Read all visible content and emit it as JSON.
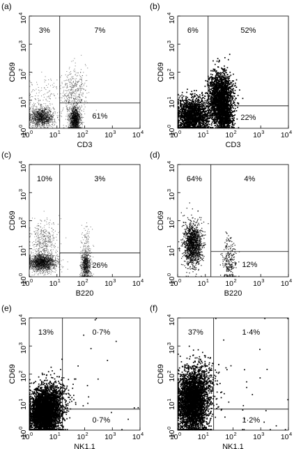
{
  "chart_data": [
    {
      "type": "scatter",
      "panel_label": "(a)",
      "xlabel": "CD3",
      "ylabel": "CD69",
      "x_log_range": [
        0,
        4
      ],
      "y_log_range": [
        0,
        4
      ],
      "tick_labels": [
        "10",
        "10",
        "10",
        "10",
        "10"
      ],
      "tick_exponents": [
        "0",
        "1",
        "2",
        "3",
        "4"
      ],
      "x_gate_log": 1.1,
      "y_gate_log": 0.9,
      "quadrant_percentages": {
        "upper_left": "3%",
        "upper_right": "7%",
        "lower_right": "61%"
      },
      "density": "sparse",
      "clusters": [
        {
          "x": 0.45,
          "y": 0.4,
          "sx": 0.22,
          "sy": 0.17,
          "count": 1300
        },
        {
          "x": 1.65,
          "y": 0.3,
          "sx": 0.1,
          "sy": 0.22,
          "count": 1400
        },
        {
          "x": 1.6,
          "y": 1.25,
          "sx": 0.22,
          "sy": 0.45,
          "count": 450
        },
        {
          "x": 0.5,
          "y": 1.2,
          "sx": 0.3,
          "sy": 0.35,
          "count": 120
        }
      ]
    },
    {
      "type": "scatter",
      "panel_label": "(b)",
      "xlabel": "CD3",
      "ylabel": "CD69",
      "x_log_range": [
        0,
        4
      ],
      "y_log_range": [
        0,
        4
      ],
      "tick_labels": [
        "10",
        "10",
        "10",
        "10",
        "10"
      ],
      "tick_exponents": [
        "0",
        "1",
        "2",
        "3",
        "4"
      ],
      "x_gate_log": 1.1,
      "y_gate_log": 0.8,
      "quadrant_percentages": {
        "upper_left": "6%",
        "upper_right": "52%",
        "lower_right": "22%"
      },
      "density": "dense",
      "clusters": [
        {
          "x": 0.55,
          "y": 0.45,
          "sx": 0.3,
          "sy": 0.3,
          "count": 1700
        },
        {
          "x": 1.55,
          "y": 1.05,
          "sx": 0.22,
          "sy": 0.45,
          "count": 2100
        },
        {
          "x": 1.7,
          "y": 0.35,
          "sx": 0.15,
          "sy": 0.2,
          "count": 400
        }
      ]
    },
    {
      "type": "scatter",
      "panel_label": "(c)",
      "xlabel": "B220",
      "ylabel": "CD69",
      "x_log_range": [
        0,
        4
      ],
      "y_log_range": [
        0,
        4
      ],
      "tick_labels": [
        "10",
        "10",
        "10",
        "10",
        "10"
      ],
      "tick_exponents": [
        "0",
        "1",
        "2",
        "3",
        "4"
      ],
      "x_gate_log": 1.1,
      "y_gate_log": 0.85,
      "quadrant_percentages": {
        "upper_left": "10%",
        "upper_right": "3%",
        "lower_right": "26%"
      },
      "density": "sparse",
      "clusters": [
        {
          "x": 0.45,
          "y": 0.5,
          "sx": 0.25,
          "sy": 0.15,
          "count": 1800
        },
        {
          "x": 0.5,
          "y": 1.2,
          "sx": 0.25,
          "sy": 0.4,
          "count": 450
        },
        {
          "x": 2.05,
          "y": 0.4,
          "sx": 0.09,
          "sy": 0.25,
          "count": 800
        },
        {
          "x": 2.05,
          "y": 1.15,
          "sx": 0.1,
          "sy": 0.35,
          "count": 90
        }
      ]
    },
    {
      "type": "scatter",
      "panel_label": "(d)",
      "xlabel": "B220",
      "ylabel": "CD69",
      "x_log_range": [
        0,
        4
      ],
      "y_log_range": [
        0,
        4
      ],
      "tick_labels": [
        "10",
        "10",
        "10",
        "10",
        "10"
      ],
      "tick_exponents": [
        "0",
        "1",
        "2",
        "3",
        "4"
      ],
      "x_gate_log": 1.2,
      "y_gate_log": 0.9,
      "quadrant_percentages": {
        "upper_left": "64%",
        "upper_right": "4%",
        "lower_right": "12%"
      },
      "density": "medium",
      "clusters": [
        {
          "x": 0.55,
          "y": 1.15,
          "sx": 0.17,
          "sy": 0.38,
          "count": 1300
        },
        {
          "x": 1.85,
          "y": 0.5,
          "sx": 0.12,
          "sy": 0.3,
          "count": 180
        },
        {
          "x": 1.85,
          "y": 1.15,
          "sx": 0.1,
          "sy": 0.25,
          "count": 40
        }
      ]
    },
    {
      "type": "scatter",
      "panel_label": "(e)",
      "xlabel": "NK1.1",
      "ylabel": "CD69",
      "x_log_range": [
        0,
        4
      ],
      "y_log_range": [
        0,
        4
      ],
      "tick_labels": [
        "10",
        "10",
        "10",
        "10",
        "10"
      ],
      "tick_exponents": [
        "0",
        "1",
        "2",
        "3",
        "4"
      ],
      "x_gate_log": 1.2,
      "y_gate_log": 0.75,
      "quadrant_percentages": {
        "upper_left": "13%",
        "upper_right": "0·7%",
        "lower_right": "0·7%"
      },
      "density": "dense",
      "clusters": [
        {
          "x": 0.55,
          "y": 0.65,
          "sx": 0.28,
          "sy": 0.38,
          "count": 3800
        },
        {
          "x": 0.9,
          "y": 1.3,
          "sx": 0.3,
          "sy": 0.3,
          "count": 300
        },
        {
          "x": 2.2,
          "y": 1.8,
          "sx": 0.9,
          "sy": 1.0,
          "count": 25
        }
      ]
    },
    {
      "type": "scatter",
      "panel_label": "(f)",
      "xlabel": "NK1.1",
      "ylabel": "CD69",
      "x_log_range": [
        0,
        4
      ],
      "y_log_range": [
        0,
        4
      ],
      "tick_labels": [
        "10",
        "10",
        "10",
        "10",
        "10"
      ],
      "tick_exponents": [
        "0",
        "1",
        "2",
        "3",
        "4"
      ],
      "x_gate_log": 1.3,
      "y_gate_log": 0.75,
      "quadrant_percentages": {
        "upper_left": "37%",
        "upper_right": "1·4%",
        "lower_right": "1·2%"
      },
      "density": "dense",
      "clusters": [
        {
          "x": 0.55,
          "y": 1.0,
          "sx": 0.28,
          "sy": 0.55,
          "count": 3600
        },
        {
          "x": 0.9,
          "y": 1.8,
          "sx": 0.3,
          "sy": 0.35,
          "count": 200
        },
        {
          "x": 2.5,
          "y": 1.8,
          "sx": 0.9,
          "sy": 1.0,
          "count": 35
        }
      ]
    }
  ]
}
